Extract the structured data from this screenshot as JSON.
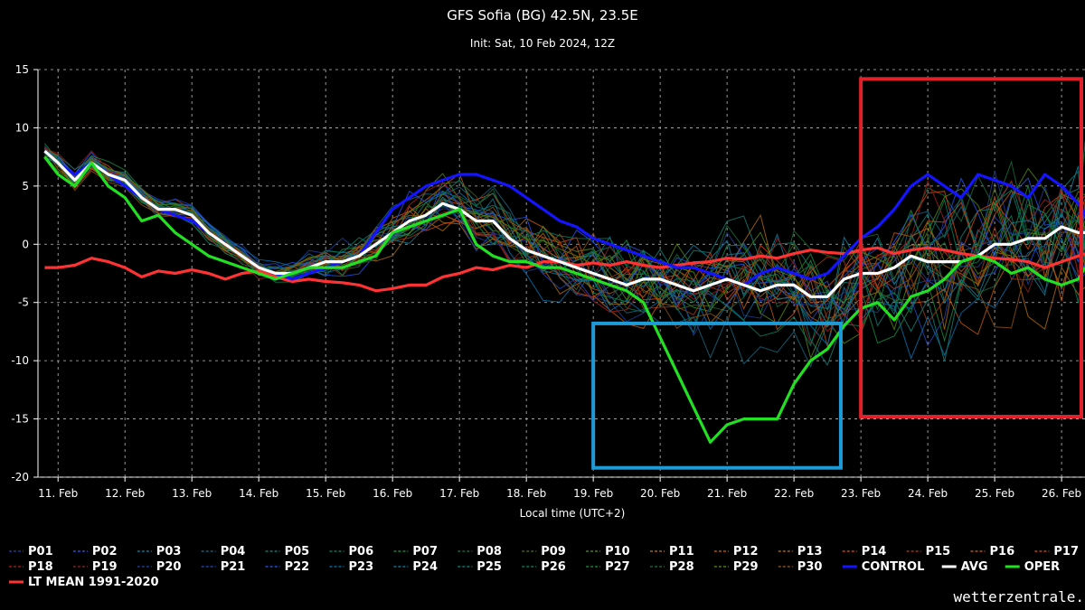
{
  "chart_data": {
    "type": "line",
    "title": "GFS Sofia (BG) 42.5N, 23.5E",
    "subtitle": "Init: Sat, 10 Feb 2024, 12Z",
    "xlabel": "Local time (UTC+2)",
    "ylabel": "",
    "ylim": [
      -20,
      15
    ],
    "yticks": [
      -20,
      -15,
      -10,
      -5,
      0,
      5,
      10,
      15
    ],
    "xlim": [
      10.7,
      26.35
    ],
    "x_tick_values": [
      11,
      12,
      13,
      14,
      15,
      16,
      17,
      18,
      19,
      20,
      21,
      22,
      23,
      24,
      25,
      26
    ],
    "x_tick_labels": [
      "11. Feb",
      "12. Feb",
      "13. Feb",
      "14. Feb",
      "15. Feb",
      "16. Feb",
      "17. Feb",
      "18. Feb",
      "19. Feb",
      "20. Feb",
      "21. Feb",
      "22. Feb",
      "23. Feb",
      "24. Feb",
      "25. Feb",
      "26. Feb"
    ],
    "grid": true,
    "legend_position": "bottom",
    "ensemble_members": [
      "P01",
      "P02",
      "P03",
      "P04",
      "P05",
      "P06",
      "P07",
      "P08",
      "P09",
      "P10",
      "P11",
      "P12",
      "P13",
      "P14",
      "P15",
      "P16",
      "P17",
      "P18",
      "P19",
      "P20",
      "P21",
      "P22",
      "P23",
      "P24",
      "P25",
      "P26",
      "P27",
      "P28",
      "P29",
      "P30"
    ],
    "member_colors": [
      "#1e3a8a",
      "#1d4ed8",
      "#0e7490",
      "#155e75",
      "#0f766e",
      "#047857",
      "#15803d",
      "#166534",
      "#3f6212",
      "#4d7c0f",
      "#a16207",
      "#b45309",
      "#a16207",
      "#c2410c",
      "#9a3412",
      "#b45309",
      "#c2410c",
      "#991b1b",
      "#7f1d1d",
      "#1e3a8a",
      "#1e40af",
      "#1d4ed8",
      "#0369a1",
      "#0e7490",
      "#0f766e",
      "#047857",
      "#15803d",
      "#166534",
      "#4d7c0f",
      "#854d0e"
    ],
    "series": [
      {
        "name": "CONTROL",
        "color": "#1414ff",
        "width": 3.2,
        "x": [
          10.8,
          11,
          11.25,
          11.5,
          11.75,
          12,
          12.25,
          12.5,
          12.75,
          13,
          13.25,
          13.5,
          13.75,
          14,
          14.25,
          14.5,
          14.75,
          15,
          15.25,
          15.5,
          15.75,
          16,
          16.25,
          16.5,
          16.75,
          17,
          17.25,
          17.5,
          17.75,
          18,
          18.25,
          18.5,
          18.75,
          19,
          19.25,
          19.5,
          19.75,
          20,
          20.25,
          20.5,
          20.75,
          21,
          21.25,
          21.5,
          21.75,
          22,
          22.25,
          22.5,
          22.75,
          23,
          23.25,
          23.5,
          23.75,
          24,
          24.25,
          24.5,
          24.75,
          25,
          25.25,
          25.5,
          25.75,
          26,
          26.25,
          26.35
        ],
        "y": [
          8,
          7,
          6,
          7,
          6,
          5,
          4,
          3,
          2.5,
          2,
          1,
          0,
          -1,
          -2,
          -2.5,
          -3,
          -2.5,
          -2,
          -1.5,
          -1,
          1,
          3,
          4,
          5,
          5.5,
          6,
          6,
          5.5,
          5,
          4,
          3,
          2,
          1.5,
          0.5,
          0,
          -0.5,
          -1,
          -1.5,
          -2,
          -2,
          -2.5,
          -3,
          -3.5,
          -2.5,
          -2,
          -2.5,
          -3,
          -2.5,
          -1,
          0.5,
          1.5,
          3,
          5,
          6,
          5,
          4,
          6,
          5.5,
          5,
          4,
          6,
          5,
          3.5,
          2.5
        ]
      },
      {
        "name": "AVG",
        "color": "#ffffff",
        "width": 3.2,
        "x": [
          10.8,
          11,
          11.25,
          11.5,
          11.75,
          12,
          12.25,
          12.5,
          12.75,
          13,
          13.25,
          13.5,
          13.75,
          14,
          14.25,
          14.5,
          14.75,
          15,
          15.25,
          15.5,
          15.75,
          16,
          16.25,
          16.5,
          16.75,
          17,
          17.25,
          17.5,
          17.75,
          18,
          18.25,
          18.5,
          18.75,
          19,
          19.25,
          19.5,
          19.75,
          20,
          20.25,
          20.5,
          20.75,
          21,
          21.25,
          21.5,
          21.75,
          22,
          22.25,
          22.5,
          22.75,
          23,
          23.25,
          23.5,
          23.75,
          24,
          24.25,
          24.5,
          24.75,
          25,
          25.25,
          25.5,
          25.75,
          26,
          26.25,
          26.35
        ],
        "y": [
          8,
          7,
          5.5,
          7,
          6,
          5.5,
          4,
          3,
          3,
          2.5,
          1,
          0,
          -1,
          -2,
          -2.5,
          -2.5,
          -2,
          -1.5,
          -1.5,
          -1,
          0,
          1,
          2,
          2.5,
          3.5,
          3,
          2,
          2,
          0.5,
          -0.5,
          -1,
          -1.5,
          -2,
          -2.5,
          -3,
          -3.5,
          -3,
          -3,
          -3.5,
          -4,
          -3.5,
          -3,
          -3.5,
          -4,
          -3.5,
          -3.5,
          -4.5,
          -4.5,
          -3,
          -2.5,
          -2.5,
          -2,
          -1,
          -1.5,
          -1.5,
          -1.5,
          -1,
          0,
          0,
          0.5,
          0.5,
          1.5,
          1,
          1
        ]
      },
      {
        "name": "OPER",
        "color": "#22e022",
        "width": 3.2,
        "x": [
          10.8,
          11,
          11.25,
          11.5,
          11.75,
          12,
          12.25,
          12.5,
          12.75,
          13,
          13.25,
          13.5,
          13.75,
          14,
          14.25,
          14.5,
          14.75,
          15,
          15.25,
          15.5,
          15.75,
          16,
          16.25,
          16.5,
          16.75,
          17,
          17.25,
          17.5,
          17.75,
          18,
          18.25,
          18.5,
          18.75,
          19,
          19.25,
          19.5,
          19.75,
          20,
          20.25,
          20.5,
          20.75,
          21,
          21.25,
          21.5,
          21.75,
          22,
          22.25,
          22.5,
          22.75,
          23,
          23.25,
          23.5,
          23.75,
          24,
          24.25,
          24.5,
          24.75,
          25,
          25.25,
          25.5,
          25.75,
          26,
          26.25,
          26.35
        ],
        "y": [
          7.5,
          6,
          5,
          7,
          5,
          4,
          2,
          2.5,
          1,
          0,
          -1,
          -1.5,
          -2,
          -2.5,
          -3,
          -2.5,
          -2,
          -2,
          -2,
          -1.5,
          -1,
          1,
          1.5,
          2,
          2.5,
          3,
          0,
          -1,
          -1.5,
          -1.5,
          -2,
          -2,
          -2.5,
          -3,
          -3.5,
          -4,
          -5,
          -8,
          -11,
          -14,
          -17,
          -15.5,
          -15,
          -15,
          -15,
          -12,
          -10,
          -9,
          -7,
          -5.5,
          -5,
          -6.5,
          -4.5,
          -4,
          -3,
          -1.5,
          -1,
          -1.5,
          -2.5,
          -2,
          -3,
          -3.5,
          -3,
          -2
        ]
      },
      {
        "name": "LT MEAN 1991-2020",
        "color": "#ff3333",
        "width": 3.2,
        "x": [
          10.8,
          11,
          11.25,
          11.5,
          11.75,
          12,
          12.25,
          12.5,
          12.75,
          13,
          13.25,
          13.5,
          13.75,
          14,
          14.25,
          14.5,
          14.75,
          15,
          15.25,
          15.5,
          15.75,
          16,
          16.25,
          16.5,
          16.75,
          17,
          17.25,
          17.5,
          17.75,
          18,
          18.25,
          18.5,
          18.75,
          19,
          19.25,
          19.5,
          19.75,
          20,
          20.25,
          20.5,
          20.75,
          21,
          21.25,
          21.5,
          21.75,
          22,
          22.25,
          22.5,
          22.75,
          23,
          23.25,
          23.5,
          23.75,
          24,
          24.25,
          24.5,
          24.75,
          25,
          25.25,
          25.5,
          25.75,
          26,
          26.25,
          26.35
        ],
        "y": [
          -2,
          -2,
          -1.8,
          -1.2,
          -1.5,
          -2,
          -2.8,
          -2.3,
          -2.5,
          -2.2,
          -2.5,
          -3,
          -2.5,
          -2.3,
          -2.8,
          -3.2,
          -3,
          -3.2,
          -3.3,
          -3.5,
          -4,
          -3.8,
          -3.5,
          -3.5,
          -2.8,
          -2.5,
          -2,
          -2.2,
          -1.8,
          -2,
          -1.5,
          -1.5,
          -1.8,
          -1.6,
          -1.8,
          -1.5,
          -1.8,
          -2,
          -1.8,
          -1.6,
          -1.5,
          -1.2,
          -1.3,
          -1,
          -1.2,
          -0.8,
          -0.5,
          -0.7,
          -0.8,
          -0.5,
          -0.3,
          -0.8,
          -0.5,
          -0.3,
          -0.5,
          -0.8,
          -1,
          -1.2,
          -1.3,
          -1.5,
          -2,
          -1.5,
          -1,
          -0.8
        ]
      }
    ],
    "annotations": [
      {
        "shape": "rectangle",
        "color": "#1e9bd7",
        "x": [
          19.0,
          22.7
        ],
        "y": [
          -19.2,
          -6.8
        ]
      },
      {
        "shape": "rectangle",
        "color": "#e0202a",
        "x": [
          23.0,
          26.35
        ],
        "y": [
          -14.8,
          14.2
        ]
      }
    ]
  },
  "legend": {
    "members": [
      "P01",
      "P02",
      "P03",
      "P04",
      "P05",
      "P06",
      "P07",
      "P08",
      "P09",
      "P10",
      "P11",
      "P12",
      "P13",
      "P14",
      "P15",
      "P16",
      "P17",
      "P18",
      "P19",
      "P20",
      "P21",
      "P22",
      "P23",
      "P24",
      "P25",
      "P26",
      "P27",
      "P28",
      "P29",
      "P30"
    ],
    "control": "CONTROL",
    "avg": "AVG",
    "oper": "OPER",
    "ltmean": "LT MEAN 1991-2020"
  },
  "watermark": "wetterzentrale."
}
